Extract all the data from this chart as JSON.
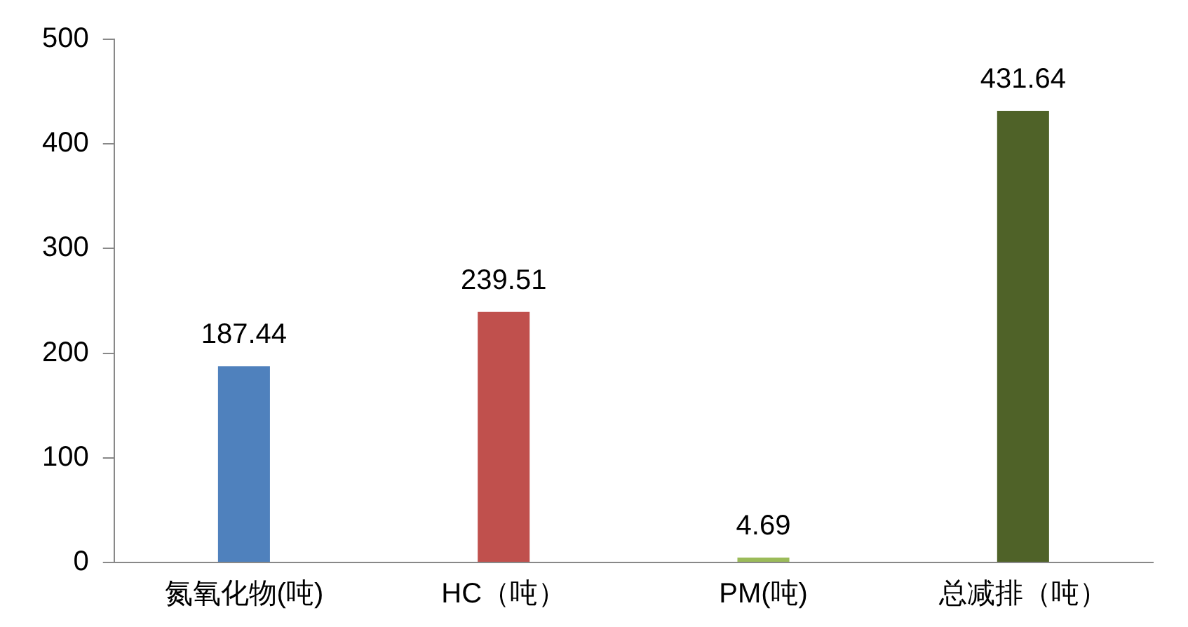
{
  "chart_data": {
    "type": "bar",
    "categories": [
      "氮氧化物(吨)",
      "HC（吨）",
      "PM(吨)",
      "总减排（吨）"
    ],
    "values": [
      187.44,
      239.51,
      4.69,
      431.64
    ],
    "colors": [
      "#4f81bd",
      "#c0504d",
      "#9bbb59",
      "#4f6228"
    ],
    "ylim": [
      0,
      500
    ],
    "yticks": [
      0,
      100,
      200,
      300,
      400,
      500
    ],
    "grid": false,
    "legend": false,
    "data_labels": true
  }
}
